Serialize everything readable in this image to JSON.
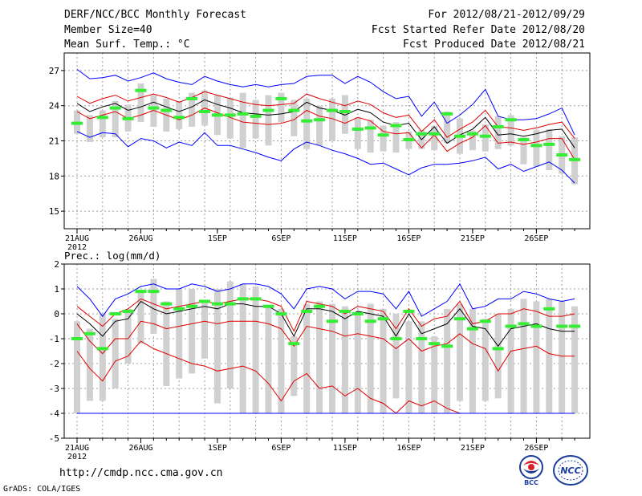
{
  "header": {
    "title": "DERF/NCC/BCC Monthly Forecast",
    "member_size": "Member Size=40",
    "variable": "Mean Surf. Temp.: °C",
    "forecast_period": "For 2012/08/21-2012/09/29",
    "started_refer": "Fcst Started Refer Date 2012/08/20",
    "produced": "Fcst Produced Date 2012/08/21"
  },
  "footer": {
    "url": "http://cmdp.ncc.cma.gov.cn",
    "grads": "GrADS: COLA/IGES",
    "logo_bcc": "BCC",
    "logo_ncc": "NCC"
  },
  "colors": {
    "grid": "#a0a0a0",
    "box": "#d0d0d0",
    "blue": "#0000ff",
    "red": "#e00000",
    "green": "#33ee33",
    "mean": "#000000"
  },
  "chart_data": [
    {
      "type": "line",
      "name": "temperature",
      "title": "Mean Surf. Temp.: °C",
      "xlabel": "",
      "ylabel": "",
      "ylim": [
        13.5,
        28.5
      ],
      "yticks": [
        15,
        18,
        21,
        24,
        27
      ],
      "x_tick_labels": [
        "21AUG",
        "26AUG",
        "1SEP",
        "6SEP",
        "11SEP",
        "16SEP",
        "21SEP",
        "26SEP"
      ],
      "x_tick_days": [
        1,
        6,
        12,
        17,
        22,
        27,
        32,
        37
      ],
      "year_label": "2012",
      "days": 40,
      "series": [
        {
          "name": "max",
          "color": "blue",
          "values": [
            27.1,
            26.3,
            26.4,
            26.6,
            26.1,
            26.4,
            26.8,
            26.3,
            26.0,
            25.8,
            26.5,
            26.1,
            25.8,
            25.6,
            25.8,
            25.6,
            25.8,
            25.9,
            26.5,
            26.6,
            26.6,
            25.9,
            26.5,
            26.0,
            25.2,
            24.6,
            24.8,
            23.1,
            24.3,
            22.5,
            23.2,
            24.1,
            25.4,
            23.1,
            22.8,
            22.8,
            22.9,
            23.3,
            23.8,
            21.5
          ]
        },
        {
          "name": "upper",
          "color": "red",
          "values": [
            24.8,
            24.2,
            24.6,
            24.9,
            24.4,
            24.7,
            25.0,
            24.7,
            24.3,
            24.7,
            25.2,
            24.9,
            24.6,
            24.3,
            24.1,
            24.0,
            24.1,
            24.2,
            25.0,
            24.6,
            24.3,
            24.0,
            24.4,
            24.1,
            23.4,
            23.0,
            23.2,
            21.8,
            22.8,
            21.3,
            22.0,
            22.6,
            23.6,
            22.2,
            22.1,
            21.9,
            22.1,
            22.4,
            22.6,
            21.2
          ]
        },
        {
          "name": "mean",
          "color": "mean",
          "values": [
            24.2,
            23.5,
            23.9,
            24.2,
            23.6,
            23.9,
            24.3,
            23.9,
            23.5,
            23.9,
            24.5,
            24.1,
            23.8,
            23.4,
            23.3,
            23.2,
            23.3,
            23.5,
            24.3,
            23.8,
            23.6,
            23.2,
            23.7,
            23.4,
            22.6,
            22.3,
            22.5,
            21.1,
            22.2,
            20.8,
            21.5,
            22.0,
            23.0,
            21.5,
            21.6,
            21.4,
            21.6,
            21.9,
            22.0,
            20.4
          ]
        },
        {
          "name": "lower",
          "color": "red",
          "values": [
            23.5,
            22.9,
            23.2,
            23.5,
            22.9,
            23.2,
            23.6,
            23.2,
            22.8,
            23.2,
            23.8,
            23.4,
            23.0,
            22.6,
            22.5,
            22.4,
            22.5,
            22.8,
            23.6,
            23.1,
            22.9,
            22.5,
            23.0,
            22.7,
            21.8,
            21.6,
            21.7,
            20.4,
            21.5,
            20.1,
            20.8,
            21.3,
            22.3,
            20.8,
            20.9,
            20.7,
            20.9,
            21.2,
            21.2,
            19.4
          ]
        },
        {
          "name": "min",
          "color": "blue",
          "values": [
            21.8,
            21.3,
            21.7,
            21.6,
            20.5,
            21.2,
            21.0,
            20.4,
            20.9,
            20.6,
            21.7,
            20.6,
            20.6,
            20.3,
            20.0,
            19.6,
            19.3,
            20.3,
            20.9,
            20.6,
            20.2,
            19.9,
            19.5,
            19.0,
            19.1,
            18.6,
            18.1,
            18.7,
            19.0,
            19.0,
            19.1,
            19.3,
            19.6,
            18.6,
            19.0,
            18.4,
            18.8,
            19.2,
            18.5,
            17.4
          ]
        },
        {
          "name": "observed_bar",
          "color": "green",
          "values": [
            22.5,
            null,
            23.0,
            23.8,
            22.9,
            25.3,
            23.8,
            23.6,
            23.0,
            24.6,
            23.5,
            23.2,
            23.2,
            23.3,
            23.1,
            23.6,
            24.6,
            23.6,
            22.7,
            22.8,
            23.6,
            23.5,
            22.0,
            22.1,
            21.5,
            22.3,
            21.1,
            21.6,
            21.6,
            23.3,
            21.4,
            21.6,
            21.4,
            22.2,
            22.8,
            21.1,
            20.6,
            20.7,
            19.8,
            19.4
          ]
        }
      ],
      "spread_boxes": [
        [
          21.6,
          23.6
        ],
        [
          20.9,
          23.2
        ],
        [
          21.3,
          23.6
        ],
        [
          21.3,
          24.4
        ],
        [
          21.8,
          24.1
        ],
        [
          22.6,
          25.9
        ],
        [
          22.2,
          24.9
        ],
        [
          21.8,
          24.6
        ],
        [
          22.0,
          24.4
        ],
        [
          22.2,
          25.1
        ],
        [
          22.3,
          25.3
        ],
        [
          21.5,
          24.9
        ],
        [
          21.2,
          24.7
        ],
        [
          20.4,
          25.1
        ],
        [
          21.2,
          24.5
        ],
        [
          20.6,
          24.9
        ],
        [
          22.6,
          25.1
        ],
        [
          21.4,
          24.5
        ],
        [
          20.3,
          24.6
        ],
        [
          20.6,
          24.0
        ],
        [
          21.0,
          24.6
        ],
        [
          21.6,
          24.9
        ],
        [
          20.3,
          23.0
        ],
        [
          20.0,
          22.8
        ],
        [
          20.1,
          22.3
        ],
        [
          20.0,
          22.6
        ],
        [
          20.3,
          21.8
        ],
        [
          20.3,
          21.9
        ],
        [
          20.2,
          22.3
        ],
        [
          20.8,
          23.5
        ],
        [
          19.9,
          22.9
        ],
        [
          20.2,
          21.9
        ],
        [
          20.1,
          22.4
        ],
        [
          20.3,
          23.1
        ],
        [
          20.6,
          23.2
        ],
        [
          19.0,
          21.3
        ],
        [
          18.8,
          21.9
        ],
        [
          18.5,
          22.0
        ],
        [
          18.2,
          21.4
        ],
        [
          17.3,
          21.3
        ]
      ]
    },
    {
      "type": "line",
      "name": "precipitation",
      "title": "Prec.: log(mm/d)",
      "xlabel": "",
      "ylabel": "",
      "ylim": [
        -5,
        2
      ],
      "yticks": [
        -5,
        -4,
        -3,
        -2,
        -1,
        0,
        1,
        2
      ],
      "x_tick_labels": [
        "21AUG",
        "26AUG",
        "1SEP",
        "6SEP",
        "11SEP",
        "16SEP",
        "21SEP",
        "26SEP"
      ],
      "x_tick_days": [
        1,
        6,
        12,
        17,
        22,
        27,
        32,
        37
      ],
      "year_label": "2012",
      "days": 40,
      "series": [
        {
          "name": "max",
          "color": "blue",
          "values": [
            1.1,
            0.6,
            -0.1,
            0.6,
            0.8,
            1.1,
            1.2,
            1.0,
            1.0,
            1.2,
            1.1,
            0.9,
            1.0,
            1.2,
            1.2,
            1.1,
            0.8,
            0.2,
            1.0,
            1.1,
            1.0,
            0.6,
            0.9,
            0.9,
            0.8,
            0.2,
            0.9,
            -0.1,
            0.2,
            0.5,
            1.2,
            0.2,
            0.3,
            0.6,
            0.6,
            0.9,
            0.8,
            0.6,
            0.5,
            0.6
          ]
        },
        {
          "name": "upper",
          "color": "red",
          "values": [
            0.3,
            -0.1,
            -0.5,
            0.0,
            0.2,
            0.6,
            0.4,
            0.2,
            0.3,
            0.4,
            0.5,
            0.4,
            0.5,
            0.6,
            0.6,
            0.5,
            0.3,
            -0.7,
            0.5,
            0.4,
            0.3,
            0.0,
            0.3,
            0.2,
            0.1,
            -0.6,
            0.2,
            -0.5,
            -0.2,
            -0.1,
            0.5,
            -0.4,
            -0.3,
            0.0,
            0.0,
            0.2,
            0.1,
            -0.1,
            -0.1,
            0.0
          ]
        },
        {
          "name": "mean",
          "color": "mean",
          "values": [
            0.0,
            -0.4,
            -0.9,
            -0.3,
            -0.2,
            0.5,
            0.2,
            0.0,
            0.1,
            0.2,
            0.3,
            0.2,
            0.4,
            0.4,
            0.3,
            0.3,
            0.0,
            -0.9,
            0.2,
            0.2,
            0.1,
            -0.2,
            0.1,
            0.0,
            -0.1,
            -0.9,
            0.0,
            -0.8,
            -0.6,
            -0.4,
            0.2,
            -0.5,
            -0.6,
            -1.3,
            -0.6,
            -0.5,
            -0.4,
            -0.6,
            -0.7,
            -0.7
          ]
        },
        {
          "name": "lower",
          "color": "red",
          "values": [
            -0.4,
            -1.1,
            -1.6,
            -1.0,
            -1.0,
            -0.3,
            -0.4,
            -0.6,
            -0.5,
            -0.4,
            -0.3,
            -0.4,
            -0.3,
            -0.3,
            -0.3,
            -0.4,
            -0.6,
            -1.3,
            -0.5,
            -0.6,
            -0.7,
            -0.9,
            -0.8,
            -0.9,
            -1.0,
            -1.4,
            -1.0,
            -1.5,
            -1.3,
            -1.2,
            -0.8,
            -1.2,
            -1.4,
            -2.3,
            -1.5,
            -1.4,
            -1.3,
            -1.6,
            -1.7,
            -1.7
          ]
        },
        {
          "name": "p10",
          "color": "red",
          "values": [
            -1.5,
            -2.2,
            -2.7,
            -1.9,
            -1.7,
            -1.1,
            -1.4,
            -1.6,
            -1.8,
            -2.0,
            -2.1,
            -2.3,
            -2.2,
            -2.1,
            -2.3,
            -2.8,
            -3.5,
            -2.7,
            -2.4,
            -3.0,
            -2.9,
            -3.3,
            -3.0,
            -3.4,
            -3.6,
            -4.0,
            -3.5,
            -3.7,
            -3.5,
            -3.8,
            -4.0,
            -4.0,
            -4.0,
            -4.0,
            -4.0,
            -4.0,
            -4.0,
            -4.0,
            -4.0,
            -4.0
          ]
        },
        {
          "name": "min",
          "color": "blue",
          "values": [
            -4.0,
            -4.0,
            -4.0,
            -4.0,
            -4.0,
            -4.0,
            -4.0,
            -4.0,
            -4.0,
            -4.0,
            -4.0,
            -4.0,
            -4.0,
            -4.0,
            -4.0,
            -4.0,
            -4.0,
            -4.0,
            -4.0,
            -4.0,
            -4.0,
            -4.0,
            -4.0,
            -4.0,
            -4.0,
            -4.0,
            -4.0,
            -4.0,
            -4.0,
            -4.0,
            -4.0,
            -4.0,
            -4.0,
            -4.0,
            -4.0,
            -4.0,
            -4.0,
            -4.0,
            -4.0,
            -4.0
          ]
        },
        {
          "name": "observed_bar",
          "color": "green",
          "values": [
            -1.0,
            -0.8,
            -1.4,
            0.0,
            0.1,
            0.9,
            0.9,
            0.4,
            0.2,
            0.3,
            0.5,
            0.4,
            0.4,
            0.6,
            0.6,
            0.3,
            0.0,
            -1.2,
            0.1,
            0.3,
            -0.3,
            0.1,
            0.0,
            -0.3,
            -0.2,
            -1.0,
            0.1,
            -1.0,
            -1.2,
            -1.3,
            -0.2,
            -0.6,
            -0.3,
            -1.4,
            -0.5,
            -0.4,
            -0.5,
            0.2,
            -0.5,
            -0.5
          ]
        }
      ],
      "spread_boxes": [
        [
          -4.0,
          -0.3
        ],
        [
          -3.5,
          -0.6
        ],
        [
          -3.5,
          0.0
        ],
        [
          -3.0,
          -0.2
        ],
        [
          -2.0,
          0.2
        ],
        [
          -1.2,
          0.9
        ],
        [
          -0.8,
          1.4
        ],
        [
          -2.9,
          0.5
        ],
        [
          -2.6,
          1.0
        ],
        [
          -2.4,
          1.0
        ],
        [
          -1.8,
          0.5
        ],
        [
          -3.6,
          1.0
        ],
        [
          -3.0,
          1.3
        ],
        [
          -4.0,
          1.2
        ],
        [
          -4.0,
          1.1
        ],
        [
          -4.0,
          0.3
        ],
        [
          -4.0,
          0.2
        ],
        [
          -3.3,
          -0.9
        ],
        [
          -4.0,
          0.4
        ],
        [
          -4.0,
          0.5
        ],
        [
          -4.0,
          0.4
        ],
        [
          -4.0,
          0.3
        ],
        [
          -4.0,
          0.1
        ],
        [
          -4.0,
          0.4
        ],
        [
          -4.0,
          0.2
        ],
        [
          -3.4,
          0.0
        ],
        [
          -4.0,
          -0.3
        ],
        [
          -4.0,
          -0.3
        ],
        [
          -4.0,
          -0.9
        ],
        [
          -4.0,
          0.2
        ],
        [
          -3.5,
          0.4
        ],
        [
          -4.0,
          0.2
        ],
        [
          -3.5,
          -0.2
        ],
        [
          -3.4,
          0.0
        ],
        [
          -4.0,
          0.2
        ],
        [
          -4.0,
          0.6
        ],
        [
          -4.0,
          0.5
        ],
        [
          -4.0,
          0.6
        ],
        [
          -4.0,
          0.5
        ],
        [
          -4.0,
          0.3
        ]
      ]
    }
  ]
}
